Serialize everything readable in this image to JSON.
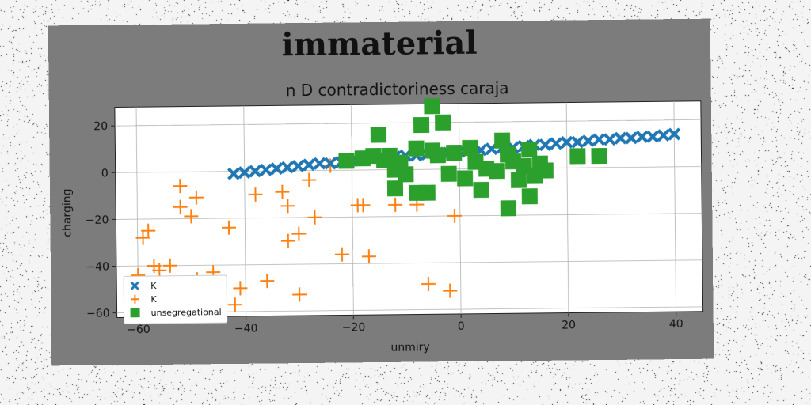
{
  "suptitle": "immaterial",
  "chart_data": {
    "type": "scatter",
    "title": "n D contradictoriness caraja",
    "xlabel": "unmiry",
    "ylabel": "charging",
    "xlim": [
      -64,
      45
    ],
    "ylim": [
      -62,
      28
    ],
    "xticks": [
      -60,
      -40,
      -20,
      0,
      20,
      40
    ],
    "yticks": [
      -60,
      -40,
      -20,
      0,
      20
    ],
    "grid": true,
    "legend_position": "lower-left",
    "series": [
      {
        "name": "K",
        "marker": "X",
        "color": "#1f77b4",
        "x": [
          -42,
          -40,
          -38,
          -36,
          -34,
          -32,
          -30,
          -28,
          -26,
          -24,
          -22,
          -20,
          -18,
          -16,
          -14,
          -12,
          -10,
          -8,
          -6,
          -4,
          -2,
          0,
          2,
          4,
          6,
          8,
          10,
          12,
          14,
          16,
          18,
          20,
          22,
          24,
          26,
          28,
          30,
          32,
          34,
          36,
          38,
          40
        ],
        "y": [
          -1,
          -0.5,
          0,
          0.5,
          1,
          1.5,
          2,
          2.5,
          3,
          3,
          3.5,
          4,
          4.5,
          5,
          5,
          5.5,
          6,
          6,
          6.5,
          7,
          7,
          7.5,
          8,
          8,
          8.5,
          9,
          9,
          9.5,
          10,
          10,
          10.5,
          11,
          11,
          11.5,
          12,
          12,
          12.5,
          12.5,
          13,
          13,
          13.5,
          14
        ]
      },
      {
        "name": "K",
        "marker": "+",
        "color": "#ff7f0e",
        "x": [
          -59,
          -58,
          -57,
          -54,
          -52,
          -52,
          -50,
          -49,
          -46,
          -43,
          -42,
          -38,
          -36,
          -33,
          -32,
          -32,
          -30,
          -30,
          -27,
          -24,
          -22,
          -19,
          -18,
          -17,
          -12,
          -8,
          -6,
          -2,
          -1,
          -28,
          -41,
          -49,
          -60,
          -56
        ],
        "y": [
          -28,
          -25,
          -40,
          -40,
          -6,
          -15,
          -19,
          -11,
          -43,
          -24,
          -57,
          -10,
          -47,
          -9,
          -15,
          -30,
          -27,
          -53,
          -20,
          2,
          -36,
          -15,
          -15,
          -37,
          -15,
          -15,
          -49,
          -52,
          -20,
          -4,
          -50,
          -46,
          -44,
          -42
        ]
      },
      {
        "name": "unsegregational",
        "marker": "s",
        "color": "#2ca02c",
        "x": [
          -21,
          -18,
          -16,
          -15,
          -14,
          -13,
          -12,
          -12,
          -11,
          -10,
          -8,
          -8,
          -7,
          -6,
          -5,
          -5,
          -4,
          -3,
          -2,
          -1,
          1,
          2,
          3,
          4,
          5,
          7,
          8,
          9,
          9,
          10,
          11,
          12,
          13,
          13,
          14,
          15,
          16,
          22,
          26
        ],
        "y": [
          4,
          5,
          6,
          15,
          4,
          6,
          0,
          -8,
          3,
          -2,
          -10,
          9,
          19,
          -10,
          8,
          27,
          6,
          20,
          -2,
          7,
          -4,
          9,
          3,
          -9,
          0,
          -1,
          12,
          6,
          -17,
          3,
          -5,
          1,
          8,
          -12,
          -3,
          2,
          -1,
          5,
          5
        ]
      }
    ]
  }
}
